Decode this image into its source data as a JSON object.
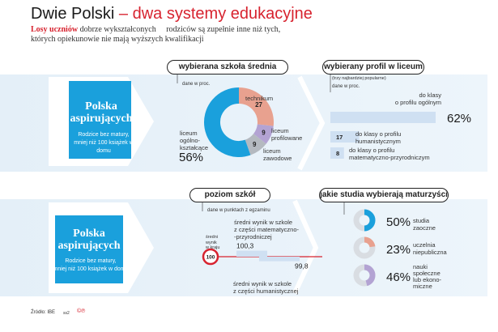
{
  "header": {
    "title_main": "Dwie Polski",
    "title_accent": "– dwa systemy edukacyjne",
    "intro_lead": "Losy uczniów",
    "intro_rest_1": "dobrze wykształconych",
    "intro_rest_2": "rodziców są zupełnie inne niż tych,",
    "intro_rest_3": "których opiekunowie nie mają wyższych kwalifikacji"
  },
  "left_panel": {
    "title_1": "Polska",
    "title_2": "aspirujących",
    "desc_1": "Rodzice bez matury,",
    "desc_2": "mniej niż 100 książek w domu",
    "title_1b": "Polska",
    "title_2b": "aspirujących",
    "desc_1b": "Rodzice bez matury,",
    "desc_2b": "mniej niż 100 książek w domu"
  },
  "colors": {
    "blue": "#1aa0dc",
    "salmon": "#e8a18f",
    "purple": "#b3a3d3",
    "gray": "#b4b9c0",
    "red": "#d7232f",
    "band": "#e4eff8",
    "bar": "#cfe0f2"
  },
  "chart_data": [
    {
      "type": "pie",
      "title": "wybierana szkoła średnia",
      "subtitle": "dane w proc.",
      "categories": [
        "technikum",
        "liceum profilowane",
        "liceum zawodowe",
        "liceum ogólno-kształcące"
      ],
      "values": [
        27,
        9,
        9,
        56
      ],
      "value_labels": [
        "27",
        "9",
        "9",
        "56%"
      ]
    },
    {
      "type": "bar",
      "title": "wybierany profil w liceum",
      "subtitle": "(trzy najbardziej popularne)",
      "unit_note": "dane w proc.",
      "categories": [
        "do klasy o profilu ogólnym",
        "do klasy o profilu humanistycznym",
        "do klasy o profilu matematyczno-przyrodniczym"
      ],
      "values": [
        62,
        17,
        8
      ],
      "value_labels": [
        "62%",
        "17",
        "8"
      ]
    },
    {
      "type": "bar",
      "title": "poziom szkół",
      "subtitle": "dane w punktach z egzaminu",
      "reference_label": "średni wynik w kraju",
      "reference_value": 100,
      "categories": [
        "średni wynik w szkole z części matematyczno-przyrodniczej",
        "średni wynik w szkole z części humanistycznej"
      ],
      "values": [
        100.3,
        99.8
      ],
      "value_labels": [
        "100,3",
        "99,8"
      ]
    },
    {
      "type": "pie",
      "title": "jakie studia wybierają maturzyści",
      "categories": [
        "studia zaoczne",
        "uczelnia niepubliczna",
        "nauki społeczne lub ekono-miczne"
      ],
      "values": [
        50,
        23,
        46
      ],
      "value_labels": [
        "50%",
        "23%",
        "46%"
      ]
    }
  ],
  "labels": {
    "technikum": "technikum",
    "lic_prof_1": "liceum",
    "lic_prof_2": "profilowane",
    "lic_zaw_1": "liceum",
    "lic_zaw_2": "zawodowe",
    "lic_og_1": "liceum",
    "lic_og_2": "ogólno-",
    "lic_og_3": "kształcące",
    "prof_og_1": "do klasy",
    "prof_og_2": "o profilu ogólnym",
    "prof_hum_1": "do klasy o profilu",
    "prof_hum_2": "humanistycznym",
    "prof_mat_1": "do klasy o profilu",
    "prof_mat_2": "matematyczno-przyrodniczym",
    "avg_1": "średni",
    "avg_2": "wynik",
    "avg_3": "w kraju",
    "mat_1": "średni wynik w szkole",
    "mat_2": "z części matematyczno-",
    "mat_3": "-przyrodniczej",
    "hum_1": "średni wynik w szkole",
    "hum_2": "z części humanistycznej",
    "stud1_1": "studia",
    "stud1_2": "zaoczne",
    "stud2_1": "uczelnia",
    "stud2_2": "niepubliczna",
    "stud3_1": "nauki",
    "stud3_2": "społeczne",
    "stud3_3": "lub ekono-",
    "stud3_4": "miczne"
  },
  "footer": {
    "source": "Źródło: IBE",
    "code": "ss2",
    "logo": "©℗"
  }
}
